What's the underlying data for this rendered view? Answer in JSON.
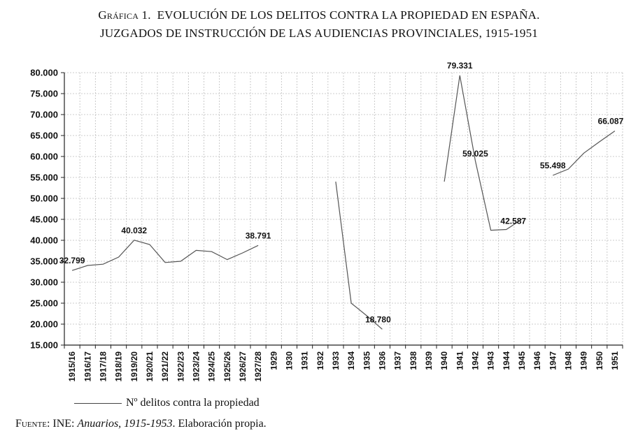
{
  "title": {
    "prefix": "Gráfica 1.",
    "line1": "EVOLUCIÓN DE LOS DELITOS CONTRA LA PROPIEDAD EN ESPAÑA.",
    "line2": "JUZGADOS DE INSTRUCCIÓN DE LAS AUDIENCIAS PROVINCIALES, 1915-1951"
  },
  "legend": {
    "label": "Nº delitos contra la propiedad"
  },
  "source": {
    "label": "Fuente:",
    "pre": "INE:",
    "italic": "Anuarios, 1915-1953",
    "post": ". Elaboración propia."
  },
  "chart_data": {
    "type": "line",
    "categories": [
      "1915/16",
      "1916/17",
      "1917/18",
      "1918/19",
      "1919/20",
      "1920/21",
      "1921/22",
      "1922/23",
      "1923/24",
      "1924/25",
      "1925/26",
      "1926/27",
      "1927/28",
      "1929",
      "1930",
      "1931",
      "1932",
      "1933",
      "1934",
      "1935",
      "1936",
      "1937",
      "1938",
      "1939",
      "1940",
      "1941",
      "1942",
      "1943",
      "1944",
      "1945",
      "1946",
      "1947",
      "1948",
      "1949",
      "1950",
      "1951"
    ],
    "series": [
      {
        "name": "Nº delitos contra la propiedad",
        "color": "#555555",
        "values": [
          32799,
          34000,
          34300,
          36000,
          40032,
          39000,
          34700,
          35000,
          37600,
          37300,
          35400,
          37000,
          38791,
          null,
          null,
          null,
          null,
          54000,
          25000,
          22000,
          18780,
          null,
          null,
          null,
          54000,
          79331,
          59025,
          42400,
          42587,
          45000,
          null,
          55498,
          57000,
          60800,
          63500,
          66087
        ]
      }
    ],
    "data_labels": [
      {
        "index": 0,
        "text": "32.799"
      },
      {
        "index": 4,
        "text": "40.032"
      },
      {
        "index": 12,
        "text": "38.791"
      },
      {
        "index": 20,
        "text": "18.780"
      },
      {
        "index": 25,
        "text": "79.331"
      },
      {
        "index": 26,
        "text": "59.025"
      },
      {
        "index": 28,
        "text": "42.587"
      },
      {
        "index": 31,
        "text": "55.498"
      },
      {
        "index": 35,
        "text": "66.087"
      }
    ],
    "yticks": [
      "15.000",
      "20.000",
      "25.000",
      "30.000",
      "35.000",
      "40.000",
      "45.000",
      "50.000",
      "55.000",
      "60.000",
      "65.000",
      "70.000",
      "75.000",
      "80.000"
    ],
    "ylim": [
      15000,
      80000
    ],
    "grid": true,
    "legend_position": "bottom-left"
  }
}
